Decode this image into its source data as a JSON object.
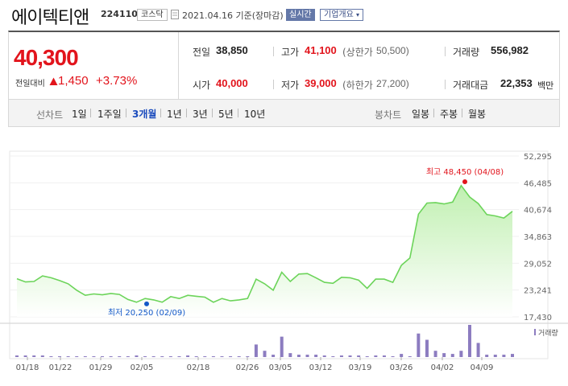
{
  "header": {
    "company_name": "에이텍티앤",
    "stock_code": "224110",
    "market": "코스닥",
    "date_text": "2021.04.16 기준(장마감)",
    "realtime_label": "실시간",
    "overview_label": "기업개요"
  },
  "price": {
    "current": "40,300",
    "change_label": "전일대비",
    "change_value": "1,450",
    "change_pct": "+3.73%"
  },
  "stats": {
    "prev_close_label": "전일",
    "prev_close": "38,850",
    "high_label": "고가",
    "high": "41,100",
    "upper_limit_label": "(상한가",
    "upper_limit": "50,500)",
    "volume_label": "거래량",
    "volume": "556,982",
    "open_label": "시가",
    "open": "40,000",
    "low_label": "저가",
    "low": "39,000",
    "lower_limit_label": "(하한가",
    "lower_limit": "27,200)",
    "amount_label": "거래대금",
    "amount": "22,353",
    "amount_unit": "백만"
  },
  "periods": {
    "line_label": "선차트",
    "line_items": [
      "1일",
      "1주일",
      "3개월",
      "1년",
      "3년",
      "5년",
      "10년"
    ],
    "active": "3개월",
    "candle_label": "봉차트",
    "candle_items": [
      "일봉",
      "주봉",
      "월봉"
    ]
  },
  "colors": {
    "up": "#e2141c",
    "down": "#1358c8",
    "line": "#6cd45a",
    "volume": "#8c7cc0"
  },
  "chart_data": {
    "type": "area",
    "x_ticks": [
      "01/18",
      "01/22",
      "01/29",
      "02/05",
      "02/18",
      "02/26",
      "03/05",
      "03/12",
      "03/19",
      "03/26",
      "04/02",
      "04/09"
    ],
    "y_ticks": [
      "52,295",
      "46,485",
      "40,674",
      "34,863",
      "29,052",
      "23,241",
      "17,430"
    ],
    "ylim": [
      17430,
      52295
    ],
    "high_annotation": "최고 48,450 (04/08)",
    "low_annotation": "최저 20,250 (02/09)",
    "volume_legend": "거래량",
    "series_price": [
      25700,
      25000,
      25100,
      26300,
      25900,
      25300,
      24600,
      23200,
      22100,
      22400,
      22200,
      22500,
      22300,
      21200,
      20600,
      21400,
      21100,
      20600,
      21800,
      21400,
      22100,
      21900,
      21700,
      20600,
      21400,
      20900,
      21100,
      21400,
      25600,
      24600,
      23200,
      27100,
      25100,
      26700,
      26800,
      25900,
      24900,
      24700,
      26000,
      25900,
      25400,
      23600,
      25600,
      25600,
      24900,
      28600,
      30200,
      39700,
      42100,
      42200,
      41900,
      42300,
      45900,
      43400,
      42000,
      39600,
      39300,
      38850,
      40300
    ],
    "series_volume": [
      2,
      2,
      2,
      2,
      1,
      1,
      1,
      1,
      1,
      1,
      1,
      1,
      1,
      1,
      2,
      1,
      1,
      1,
      1,
      1,
      2,
      1,
      1,
      1,
      1,
      1,
      1,
      1,
      16,
      8,
      3,
      26,
      5,
      3,
      3,
      3,
      2,
      1,
      2,
      2,
      2,
      1,
      2,
      2,
      1,
      4,
      1,
      30,
      22,
      8,
      5,
      4,
      8,
      41,
      18,
      3,
      3,
      3,
      4
    ]
  }
}
